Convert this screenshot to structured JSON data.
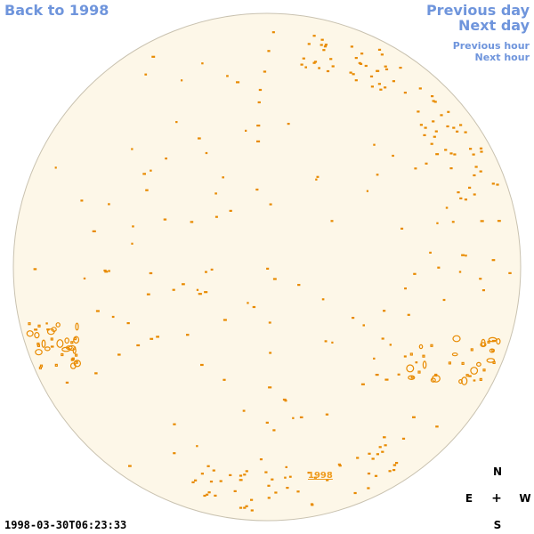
{
  "nav": {
    "back": "Back to 1998",
    "previous_day": "Previous day",
    "next_day": "Next day",
    "previous_hour": "Previous hour",
    "next_hour": "Next hour"
  },
  "compass": {
    "north": "N",
    "south": "S",
    "east": "E",
    "west": "W",
    "center": "+"
  },
  "timestamp": "1998-03-30T06:23:33",
  "year_link": "1998",
  "colors": {
    "disk_fill": "#fdf7e8",
    "disk_edge": "#c9c2b0",
    "feature": "#e88a00",
    "nav_link": "#6f95dc"
  }
}
